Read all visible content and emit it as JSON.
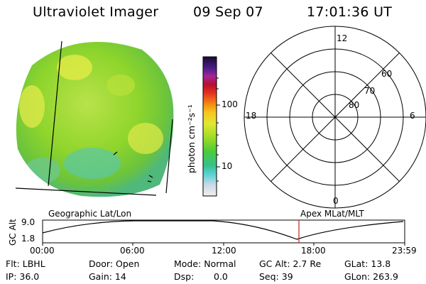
{
  "header": {
    "instrument": "Ultraviolet Imager",
    "date": "09 Sep 07",
    "time": "17:01:36 UT"
  },
  "colorbar": {
    "unit": "photon cm⁻²s⁻¹",
    "ticks": [
      "100",
      "10"
    ]
  },
  "polar_plot": {
    "mlt_labels": [
      "12",
      "18",
      "6",
      "0"
    ],
    "lat_labels": [
      "60",
      "70",
      "80"
    ]
  },
  "timeline": {
    "left_title": "Geographic Lat/Lon",
    "right_title": "Apex MLat/MLT",
    "ylabel": "GC Alt",
    "yticks": [
      "9.0",
      "1.8"
    ],
    "xticks": [
      "00:00",
      "06:00",
      "12:00",
      "18:00",
      "23:59"
    ],
    "current_time_marker": "17:01:36"
  },
  "status": {
    "flt": "Flt: LBHL",
    "ip": "IP: 36.0",
    "door": "Door: Open",
    "gain": "Gain: 14",
    "mode": "Mode: Normal",
    "dsp_label": "Dsp:",
    "dsp_value": "0.0",
    "gc_alt": "GC Alt: 2.7 Re",
    "seq": "Seq: 39",
    "glat": "GLat: 13.8",
    "glon": "GLon: 263.9"
  },
  "colors": {
    "marker": "#c0392b",
    "disk_base": "#7fd12a",
    "disk_bright": "#d8e84a"
  }
}
